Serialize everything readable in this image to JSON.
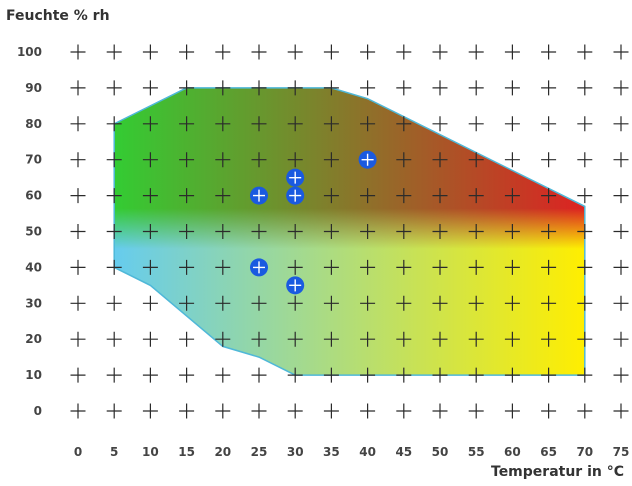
{
  "chart_data": {
    "type": "area",
    "ylabel": "Feuchte % rh",
    "xlabel": "Temperatur in °C",
    "x_ticks": [
      "0",
      "5",
      "10",
      "15",
      "20",
      "25",
      "30",
      "35",
      "40",
      "45",
      "50",
      "55",
      "60",
      "65",
      "70",
      "75"
    ],
    "y_ticks": [
      "0",
      "10",
      "20",
      "30",
      "40",
      "50",
      "60",
      "70",
      "80",
      "90",
      "100"
    ],
    "xlim": [
      0,
      75
    ],
    "ylim": [
      0,
      100
    ],
    "grid_marker": "+",
    "operating_region": {
      "boundary": [
        [
          5,
          40
        ],
        [
          10,
          35
        ],
        [
          20,
          18
        ],
        [
          25,
          15
        ],
        [
          30,
          10
        ],
        [
          70,
          10
        ],
        [
          70,
          57
        ],
        [
          40,
          87
        ],
        [
          35,
          90
        ],
        [
          15,
          90
        ],
        [
          5,
          80
        ]
      ],
      "gradient_colors": {
        "top_left": "#33cc33",
        "top_right": "#dd2222",
        "middle": "#d9cc00",
        "bottom_left": "#66ccee",
        "bottom_right": "#ffee00"
      },
      "edge_color": "#4fb8d8"
    },
    "points": [
      {
        "x": 25,
        "y": 60
      },
      {
        "x": 30,
        "y": 60
      },
      {
        "x": 30,
        "y": 65
      },
      {
        "x": 40,
        "y": 70
      },
      {
        "x": 25,
        "y": 40
      },
      {
        "x": 30,
        "y": 35
      }
    ],
    "point_color": "#1a5ae0"
  }
}
